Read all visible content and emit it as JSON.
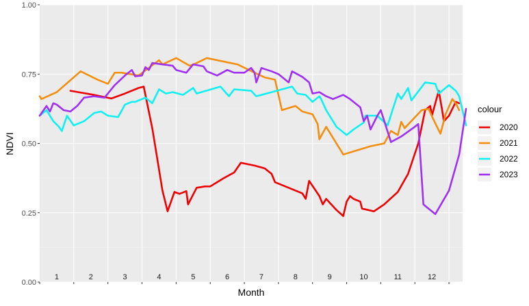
{
  "chart_data": {
    "type": "line",
    "xlabel": "Month",
    "ylabel": "NDVI",
    "xlim": [
      0,
      12.4
    ],
    "ylim": [
      0,
      1
    ],
    "yticks": [
      0.0,
      0.25,
      0.5,
      0.75,
      1.0
    ],
    "ytick_labels": [
      "0.00",
      "0.25",
      "0.50",
      "0.75",
      "1.00"
    ],
    "month_labels": [
      "1",
      "2",
      "3",
      "4",
      "5",
      "6",
      "7",
      "8",
      "9",
      "10",
      "11",
      "12"
    ],
    "grid": true,
    "legend_title": "colour",
    "legend_position": "right",
    "series": [
      {
        "name": "2020",
        "color": "#EE0000",
        "points": [
          [
            0.9,
            0.69
          ],
          [
            1.6,
            0.675
          ],
          [
            2.1,
            0.662
          ],
          [
            2.5,
            0.68
          ],
          [
            2.9,
            0.7
          ],
          [
            3.05,
            0.705
          ],
          [
            3.3,
            0.555
          ],
          [
            3.6,
            0.33
          ],
          [
            3.75,
            0.255
          ],
          [
            3.95,
            0.325
          ],
          [
            4.1,
            0.318
          ],
          [
            4.3,
            0.328
          ],
          [
            4.35,
            0.28
          ],
          [
            4.6,
            0.34
          ],
          [
            4.85,
            0.345
          ],
          [
            5.0,
            0.345
          ],
          [
            5.4,
            0.375
          ],
          [
            5.7,
            0.395
          ],
          [
            5.9,
            0.43
          ],
          [
            6.3,
            0.42
          ],
          [
            6.6,
            0.41
          ],
          [
            6.8,
            0.39
          ],
          [
            6.9,
            0.36
          ],
          [
            7.3,
            0.34
          ],
          [
            7.7,
            0.32
          ],
          [
            7.8,
            0.3
          ],
          [
            7.9,
            0.365
          ],
          [
            8.2,
            0.31
          ],
          [
            8.3,
            0.28
          ],
          [
            8.4,
            0.3
          ],
          [
            8.7,
            0.26
          ],
          [
            8.9,
            0.238
          ],
          [
            9.0,
            0.29
          ],
          [
            9.1,
            0.31
          ],
          [
            9.2,
            0.3
          ],
          [
            9.4,
            0.29
          ],
          [
            9.45,
            0.265
          ],
          [
            9.8,
            0.255
          ],
          [
            10.1,
            0.28
          ],
          [
            10.5,
            0.325
          ],
          [
            10.8,
            0.39
          ],
          [
            11.1,
            0.5
          ],
          [
            11.3,
            0.62
          ],
          [
            11.45,
            0.635
          ],
          [
            11.5,
            0.6
          ],
          [
            11.7,
            0.69
          ],
          [
            11.8,
            0.62
          ],
          [
            11.85,
            0.58
          ],
          [
            12.0,
            0.6
          ],
          [
            12.1,
            0.625
          ],
          [
            12.2,
            0.65
          ],
          [
            12.3,
            0.645
          ]
        ]
      },
      {
        "name": "2021",
        "color": "#F28E10",
        "points": [
          [
            0.0,
            0.67
          ],
          [
            0.05,
            0.66
          ],
          [
            0.5,
            0.685
          ],
          [
            1.2,
            0.76
          ],
          [
            1.7,
            0.73
          ],
          [
            2.0,
            0.715
          ],
          [
            2.2,
            0.755
          ],
          [
            2.4,
            0.755
          ],
          [
            2.9,
            0.745
          ],
          [
            3.5,
            0.8
          ],
          [
            3.6,
            0.785
          ],
          [
            4.0,
            0.808
          ],
          [
            4.4,
            0.78
          ],
          [
            4.6,
            0.79
          ],
          [
            4.9,
            0.808
          ],
          [
            5.8,
            0.785
          ],
          [
            6.3,
            0.755
          ],
          [
            6.6,
            0.738
          ],
          [
            6.9,
            0.73
          ],
          [
            7.1,
            0.62
          ],
          [
            7.5,
            0.635
          ],
          [
            7.7,
            0.615
          ],
          [
            8.0,
            0.605
          ],
          [
            8.15,
            0.57
          ],
          [
            8.2,
            0.515
          ],
          [
            8.4,
            0.56
          ],
          [
            8.9,
            0.46
          ],
          [
            9.7,
            0.49
          ],
          [
            10.1,
            0.5
          ],
          [
            10.3,
            0.545
          ],
          [
            10.5,
            0.53
          ],
          [
            10.6,
            0.578
          ],
          [
            10.7,
            0.555
          ],
          [
            11.2,
            0.62
          ],
          [
            11.4,
            0.625
          ],
          [
            11.55,
            0.585
          ],
          [
            11.75,
            0.535
          ],
          [
            11.9,
            0.605
          ],
          [
            12.1,
            0.66
          ],
          [
            12.2,
            0.645
          ],
          [
            12.3,
            0.62
          ]
        ]
      },
      {
        "name": "2022",
        "color": "#10F0F0",
        "points": [
          [
            0.0,
            0.6
          ],
          [
            0.2,
            0.62
          ],
          [
            0.4,
            0.58
          ],
          [
            0.55,
            0.562
          ],
          [
            0.65,
            0.545
          ],
          [
            0.8,
            0.6
          ],
          [
            1.0,
            0.565
          ],
          [
            1.3,
            0.58
          ],
          [
            1.6,
            0.61
          ],
          [
            1.8,
            0.615
          ],
          [
            2.0,
            0.6
          ],
          [
            2.3,
            0.595
          ],
          [
            2.5,
            0.64
          ],
          [
            2.7,
            0.65
          ],
          [
            2.8,
            0.65
          ],
          [
            3.1,
            0.665
          ],
          [
            3.3,
            0.645
          ],
          [
            3.5,
            0.695
          ],
          [
            3.7,
            0.68
          ],
          [
            3.9,
            0.685
          ],
          [
            4.2,
            0.675
          ],
          [
            4.5,
            0.7
          ],
          [
            4.6,
            0.68
          ],
          [
            5.3,
            0.705
          ],
          [
            5.55,
            0.67
          ],
          [
            5.7,
            0.695
          ],
          [
            6.2,
            0.69
          ],
          [
            6.35,
            0.67
          ],
          [
            6.8,
            0.685
          ],
          [
            7.4,
            0.705
          ],
          [
            7.55,
            0.68
          ],
          [
            7.8,
            0.675
          ],
          [
            8.0,
            0.65
          ],
          [
            8.2,
            0.67
          ],
          [
            8.25,
            0.66
          ],
          [
            8.4,
            0.62
          ],
          [
            8.7,
            0.56
          ],
          [
            8.9,
            0.54
          ],
          [
            9.0,
            0.53
          ],
          [
            9.2,
            0.55
          ],
          [
            9.5,
            0.575
          ],
          [
            9.55,
            0.6
          ],
          [
            9.9,
            0.6
          ],
          [
            10.2,
            0.565
          ],
          [
            10.5,
            0.68
          ],
          [
            10.6,
            0.66
          ],
          [
            10.8,
            0.7
          ],
          [
            10.9,
            0.655
          ],
          [
            11.3,
            0.72
          ],
          [
            11.6,
            0.715
          ],
          [
            11.7,
            0.68
          ],
          [
            12.0,
            0.71
          ],
          [
            12.2,
            0.69
          ],
          [
            12.3,
            0.67
          ],
          [
            12.5,
            0.565
          ]
        ]
      },
      {
        "name": "2023",
        "color": "#A030F0",
        "points": [
          [
            0.0,
            0.6
          ],
          [
            0.2,
            0.635
          ],
          [
            0.3,
            0.615
          ],
          [
            0.4,
            0.645
          ],
          [
            0.5,
            0.64
          ],
          [
            0.6,
            0.63
          ],
          [
            0.7,
            0.62
          ],
          [
            0.9,
            0.615
          ],
          [
            1.1,
            0.635
          ],
          [
            1.3,
            0.665
          ],
          [
            1.6,
            0.67
          ],
          [
            1.9,
            0.665
          ],
          [
            2.2,
            0.71
          ],
          [
            2.5,
            0.745
          ],
          [
            2.7,
            0.765
          ],
          [
            2.8,
            0.742
          ],
          [
            3.0,
            0.745
          ],
          [
            3.1,
            0.775
          ],
          [
            3.2,
            0.765
          ],
          [
            3.3,
            0.79
          ],
          [
            3.9,
            0.78
          ],
          [
            4.0,
            0.765
          ],
          [
            4.3,
            0.755
          ],
          [
            4.5,
            0.785
          ],
          [
            4.8,
            0.778
          ],
          [
            4.9,
            0.76
          ],
          [
            5.2,
            0.745
          ],
          [
            5.5,
            0.765
          ],
          [
            5.7,
            0.755
          ],
          [
            6.0,
            0.755
          ],
          [
            6.2,
            0.772
          ],
          [
            6.3,
            0.755
          ],
          [
            6.35,
            0.72
          ],
          [
            6.5,
            0.772
          ],
          [
            6.8,
            0.76
          ],
          [
            7.0,
            0.75
          ],
          [
            7.3,
            0.72
          ],
          [
            7.4,
            0.76
          ],
          [
            7.7,
            0.74
          ],
          [
            7.9,
            0.72
          ],
          [
            8.0,
            0.68
          ],
          [
            8.2,
            0.685
          ],
          [
            8.4,
            0.67
          ],
          [
            8.6,
            0.66
          ],
          [
            8.9,
            0.675
          ],
          [
            9.1,
            0.66
          ],
          [
            9.4,
            0.63
          ],
          [
            9.5,
            0.58
          ],
          [
            9.6,
            0.6
          ],
          [
            9.7,
            0.55
          ],
          [
            9.9,
            0.6
          ],
          [
            10.0,
            0.62
          ],
          [
            10.3,
            0.505
          ],
          [
            10.6,
            0.525
          ],
          [
            11.0,
            0.56
          ],
          [
            11.1,
            0.57
          ],
          [
            11.25,
            0.28
          ],
          [
            11.6,
            0.245
          ],
          [
            12.0,
            0.33
          ],
          [
            12.3,
            0.46
          ],
          [
            12.5,
            0.625
          ]
        ]
      }
    ]
  }
}
